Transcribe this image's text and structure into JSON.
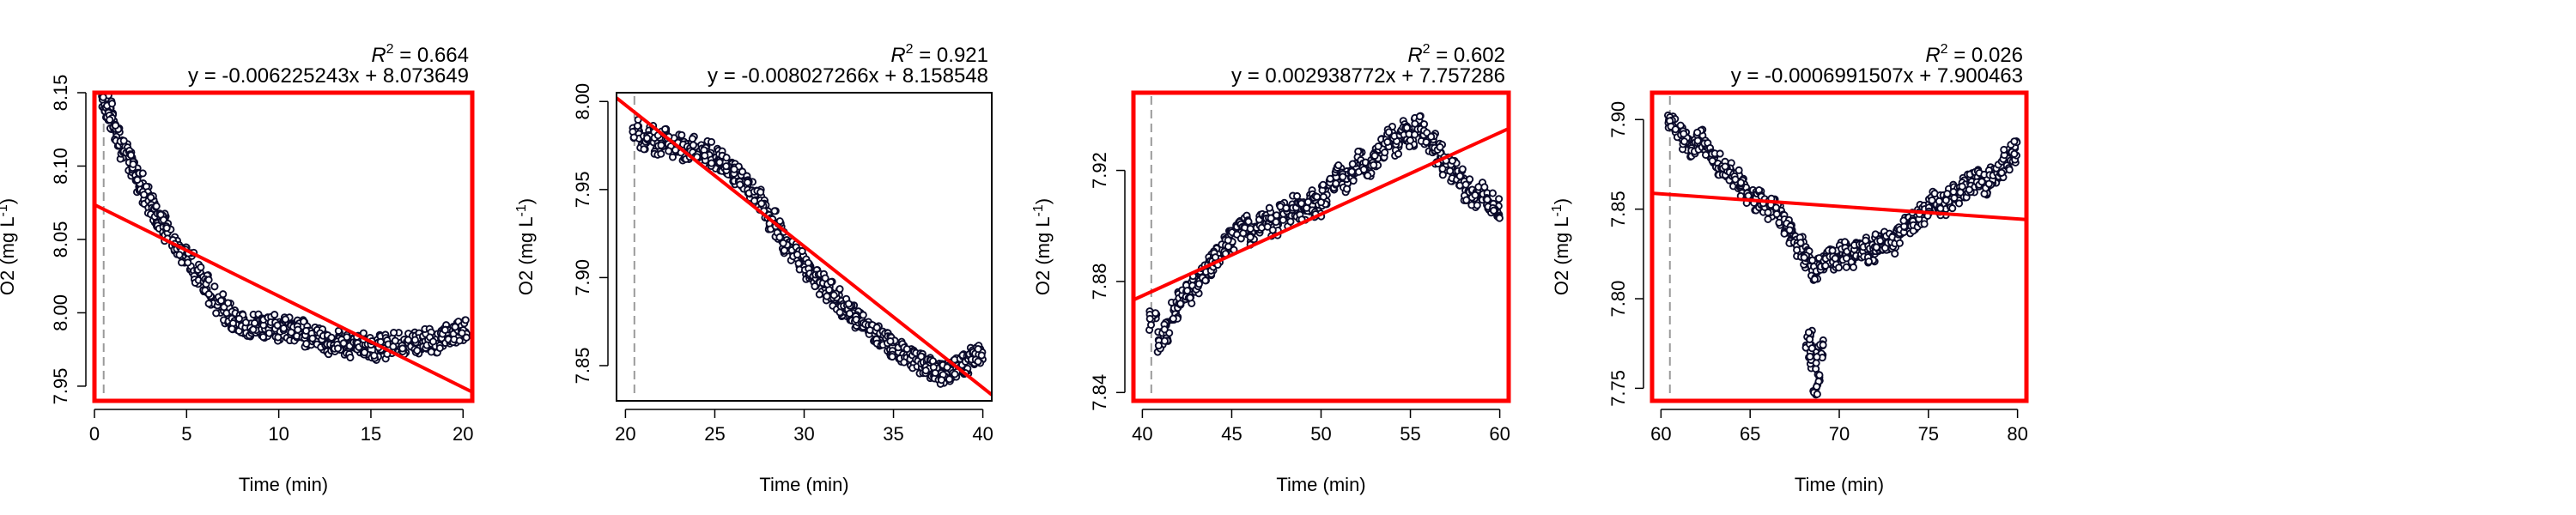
{
  "chart_data": [
    {
      "type": "scatter",
      "xlabel": "Time (min)",
      "ylabel": "O2 (mg L",
      "ylabel_sup": "-1",
      "ylabel_close": ")",
      "r2_prefix": "R",
      "r2_sup": "2",
      "r2_value": " = 0.664",
      "equation": "y = -0.006225243x + 8.073649",
      "xlim": [
        0,
        20.5
      ],
      "ylim": [
        7.94,
        8.15
      ],
      "xticks": [
        0,
        5,
        10,
        15,
        20
      ],
      "xtick_labels": [
        "0",
        "5",
        "10",
        "15",
        "20"
      ],
      "yticks": [
        7.95,
        8.0,
        8.05,
        8.1,
        8.15
      ],
      "ytick_labels": [
        "7.95",
        "8.00",
        "8.05",
        "8.10",
        "8.15"
      ],
      "frame_color": "#ff0000",
      "fit_line": {
        "slope": -0.006225243,
        "intercept": 8.073649,
        "color": "#ff0000"
      },
      "vline_x": 0.5,
      "series": [
        {
          "values": [
            [
              0.6,
              8.142
            ],
            [
              0.8,
              8.138
            ],
            [
              1.0,
              8.128
            ],
            [
              1.3,
              8.121
            ],
            [
              1.6,
              8.112
            ],
            [
              1.9,
              8.104
            ],
            [
              2.2,
              8.096
            ],
            [
              2.5,
              8.088
            ],
            [
              2.8,
              8.08
            ],
            [
              3.1,
              8.074
            ],
            [
              3.4,
              8.066
            ],
            [
              3.7,
              8.061
            ],
            [
              4.0,
              8.055
            ],
            [
              4.4,
              8.047
            ],
            [
              4.8,
              8.041
            ],
            [
              5.2,
              8.034
            ],
            [
              5.6,
              8.026
            ],
            [
              6.0,
              8.019
            ],
            [
              6.4,
              8.012
            ],
            [
              6.8,
              8.006
            ],
            [
              7.2,
              8.0
            ],
            [
              7.6,
              7.995
            ],
            [
              8.0,
              7.993
            ],
            [
              8.4,
              7.99
            ],
            [
              8.8,
              7.992
            ],
            [
              9.2,
              7.989
            ],
            [
              9.6,
              7.992
            ],
            [
              10.0,
              7.988
            ],
            [
              10.4,
              7.99
            ],
            [
              10.8,
              7.986
            ],
            [
              11.2,
              7.988
            ],
            [
              11.6,
              7.984
            ],
            [
              12.0,
              7.985
            ],
            [
              12.4,
              7.982
            ],
            [
              12.8,
              7.979
            ],
            [
              13.2,
              7.981
            ],
            [
              13.6,
              7.978
            ],
            [
              14.0,
              7.976
            ],
            [
              14.4,
              7.979
            ],
            [
              14.8,
              7.977
            ],
            [
              15.2,
              7.975
            ],
            [
              15.6,
              7.978
            ],
            [
              16.0,
              7.976
            ],
            [
              16.4,
              7.98
            ],
            [
              16.8,
              7.978
            ],
            [
              17.2,
              7.981
            ],
            [
              17.6,
              7.979
            ],
            [
              18.0,
              7.982
            ],
            [
              18.4,
              7.98
            ],
            [
              18.8,
              7.983
            ],
            [
              19.2,
              7.985
            ],
            [
              19.6,
              7.987
            ],
            [
              20.0,
              7.988
            ]
          ]
        }
      ]
    },
    {
      "type": "scatter",
      "xlabel": "Time (min)",
      "ylabel": "O2 (mg L",
      "ylabel_sup": "-1",
      "ylabel_close": ")",
      "r2_prefix": "R",
      "r2_sup": "2",
      "r2_value": " = 0.921",
      "equation": "y = -0.008027266x + 8.158548",
      "xlim": [
        19.5,
        40.5
      ],
      "ylim": [
        7.83,
        8.005
      ],
      "xticks": [
        20,
        25,
        30,
        35,
        40
      ],
      "xtick_labels": [
        "20",
        "25",
        "30",
        "35",
        "40"
      ],
      "yticks": [
        7.85,
        7.9,
        7.95,
        8.0
      ],
      "ytick_labels": [
        "7.85",
        "7.90",
        "7.95",
        "8.00"
      ],
      "frame_color": "#000000",
      "fit_line": {
        "slope": -0.008027266,
        "intercept": 8.158548,
        "color": "#ff0000"
      },
      "vline_x": 20.5,
      "series": [
        {
          "values": [
            [
              20.6,
              7.985
            ],
            [
              21.0,
              7.978
            ],
            [
              21.4,
              7.981
            ],
            [
              21.8,
              7.975
            ],
            [
              22.2,
              7.979
            ],
            [
              22.6,
              7.974
            ],
            [
              23.0,
              7.977
            ],
            [
              23.4,
              7.972
            ],
            [
              23.8,
              7.974
            ],
            [
              24.2,
              7.97
            ],
            [
              24.6,
              7.972
            ],
            [
              25.0,
              7.968
            ],
            [
              25.4,
              7.966
            ],
            [
              25.8,
              7.962
            ],
            [
              26.2,
              7.959
            ],
            [
              26.6,
              7.955
            ],
            [
              27.0,
              7.95
            ],
            [
              27.4,
              7.944
            ],
            [
              27.8,
              7.938
            ],
            [
              28.2,
              7.932
            ],
            [
              28.6,
              7.926
            ],
            [
              29.0,
              7.92
            ],
            [
              29.4,
              7.915
            ],
            [
              29.8,
              7.91
            ],
            [
              30.2,
              7.905
            ],
            [
              30.6,
              7.9
            ],
            [
              31.0,
              7.896
            ],
            [
              31.4,
              7.892
            ],
            [
              31.8,
              7.888
            ],
            [
              32.2,
              7.884
            ],
            [
              32.6,
              7.88
            ],
            [
              33.0,
              7.877
            ],
            [
              33.4,
              7.874
            ],
            [
              33.8,
              7.87
            ],
            [
              34.2,
              7.867
            ],
            [
              34.6,
              7.864
            ],
            [
              35.0,
              7.861
            ],
            [
              35.4,
              7.858
            ],
            [
              35.8,
              7.856
            ],
            [
              36.2,
              7.853
            ],
            [
              36.6,
              7.851
            ],
            [
              37.0,
              7.849
            ],
            [
              37.4,
              7.847
            ],
            [
              37.8,
              7.845
            ],
            [
              38.2,
              7.847
            ],
            [
              38.6,
              7.849
            ],
            [
              39.0,
              7.851
            ],
            [
              39.4,
              7.854
            ],
            [
              39.8,
              7.856
            ]
          ]
        }
      ]
    },
    {
      "type": "scatter",
      "xlabel": "Time (min)",
      "ylabel": "O2 (mg L",
      "ylabel_sup": "-1",
      "ylabel_close": ")",
      "r2_prefix": "R",
      "r2_sup": "2",
      "r2_value": " = 0.602",
      "equation": "y = 0.002938772x + 7.757286",
      "xlim": [
        39.5,
        60.5
      ],
      "ylim": [
        7.837,
        7.948
      ],
      "xticks": [
        40,
        45,
        50,
        55,
        60
      ],
      "xtick_labels": [
        "40",
        "45",
        "50",
        "55",
        "60"
      ],
      "yticks": [
        7.84,
        7.88,
        7.92
      ],
      "ytick_labels": [
        "7.84",
        "7.88",
        "7.92"
      ],
      "frame_color": "#ff0000",
      "fit_line": {
        "slope": 0.002938772,
        "intercept": 7.757286,
        "color": "#ff0000"
      },
      "vline_x": 40.5,
      "series": [
        {
          "values": [
            [
              40.6,
              7.866
            ],
            [
              41.0,
              7.858
            ],
            [
              41.4,
              7.862
            ],
            [
              41.8,
              7.869
            ],
            [
              42.2,
              7.873
            ],
            [
              42.6,
              7.876
            ],
            [
              43.0,
              7.879
            ],
            [
              43.4,
              7.883
            ],
            [
              43.8,
              7.886
            ],
            [
              44.2,
              7.889
            ],
            [
              44.6,
              7.893
            ],
            [
              45.0,
              7.895
            ],
            [
              45.4,
              7.898
            ],
            [
              45.8,
              7.9
            ],
            [
              46.2,
              7.897
            ],
            [
              46.6,
              7.901
            ],
            [
              47.0,
              7.903
            ],
            [
              47.4,
              7.9
            ],
            [
              47.8,
              7.905
            ],
            [
              48.2,
              7.903
            ],
            [
              48.6,
              7.907
            ],
            [
              49.0,
              7.905
            ],
            [
              49.4,
              7.909
            ],
            [
              49.8,
              7.907
            ],
            [
              50.2,
              7.911
            ],
            [
              50.6,
              7.915
            ],
            [
              51.0,
              7.918
            ],
            [
              51.4,
              7.916
            ],
            [
              51.8,
              7.92
            ],
            [
              52.2,
              7.923
            ],
            [
              52.6,
              7.921
            ],
            [
              53.0,
              7.925
            ],
            [
              53.4,
              7.928
            ],
            [
              53.8,
              7.932
            ],
            [
              54.2,
              7.929
            ],
            [
              54.6,
              7.934
            ],
            [
              55.0,
              7.932
            ],
            [
              55.4,
              7.936
            ],
            [
              55.8,
              7.933
            ],
            [
              56.2,
              7.93
            ],
            [
              56.6,
              7.926
            ],
            [
              57.0,
              7.922
            ],
            [
              57.4,
              7.92
            ],
            [
              57.8,
              7.917
            ],
            [
              58.2,
              7.913
            ],
            [
              58.6,
              7.91
            ],
            [
              59.0,
              7.912
            ],
            [
              59.4,
              7.908
            ],
            [
              59.8,
              7.906
            ]
          ]
        }
      ]
    },
    {
      "type": "scatter",
      "xlabel": "Time (min)",
      "ylabel": "O2 (mg L",
      "ylabel_sup": "-1",
      "ylabel_close": ")",
      "r2_prefix": "R",
      "r2_sup": "2",
      "r2_value": " = 0.026",
      "equation": "y = -0.0006991507x + 7.900463",
      "xlim": [
        59.5,
        80.5
      ],
      "ylim": [
        7.743,
        7.915
      ],
      "xticks": [
        60,
        65,
        70,
        75,
        80
      ],
      "xtick_labels": [
        "60",
        "65",
        "70",
        "75",
        "80"
      ],
      "yticks": [
        7.75,
        7.8,
        7.85,
        7.9
      ],
      "ytick_labels": [
        "7.75",
        "7.80",
        "7.85",
        "7.90"
      ],
      "frame_color": "#ff0000",
      "fit_line": {
        "slope": -0.0006991507,
        "intercept": 7.900463,
        "color": "#ff0000"
      },
      "vline_x": 60.5,
      "series": [
        {
          "values": [
            [
              60.6,
              7.899
            ],
            [
              61.0,
              7.892
            ],
            [
              61.4,
              7.888
            ],
            [
              61.8,
              7.885
            ],
            [
              62.2,
              7.889
            ],
            [
              62.6,
              7.884
            ],
            [
              63.0,
              7.879
            ],
            [
              63.4,
              7.875
            ],
            [
              63.8,
              7.871
            ],
            [
              64.2,
              7.866
            ],
            [
              64.6,
              7.862
            ],
            [
              65.0,
              7.858
            ],
            [
              65.4,
              7.855
            ],
            [
              65.8,
              7.852
            ],
            [
              66.2,
              7.85
            ],
            [
              66.6,
              7.847
            ],
            [
              67.0,
              7.842
            ],
            [
              67.4,
              7.836
            ],
            [
              67.8,
              7.829
            ],
            [
              68.2,
              7.823
            ],
            [
              68.6,
              7.816
            ],
            [
              69.0,
              7.82
            ],
            [
              69.4,
              7.824
            ],
            [
              69.8,
              7.822
            ],
            [
              70.2,
              7.826
            ],
            [
              70.6,
              7.823
            ],
            [
              71.0,
              7.827
            ],
            [
              71.4,
              7.829
            ],
            [
              71.8,
              7.825
            ],
            [
              72.2,
              7.83
            ],
            [
              72.6,
              7.833
            ],
            [
              73.0,
              7.831
            ],
            [
              73.4,
              7.836
            ],
            [
              73.8,
              7.84
            ],
            [
              74.2,
              7.843
            ],
            [
              74.6,
              7.847
            ],
            [
              75.0,
              7.851
            ],
            [
              75.4,
              7.854
            ],
            [
              75.8,
              7.852
            ],
            [
              76.2,
              7.856
            ],
            [
              76.6,
              7.859
            ],
            [
              77.0,
              7.862
            ],
            [
              77.4,
              7.865
            ],
            [
              77.8,
              7.868
            ],
            [
              78.2,
              7.864
            ],
            [
              78.6,
              7.869
            ],
            [
              79.0,
              7.873
            ],
            [
              79.4,
              7.878
            ],
            [
              79.8,
              7.882
            ],
            [
              68.5,
              7.765
            ],
            [
              68.7,
              7.752
            ],
            [
              68.3,
              7.778
            ],
            [
              68.9,
              7.772
            ]
          ]
        }
      ]
    }
  ]
}
